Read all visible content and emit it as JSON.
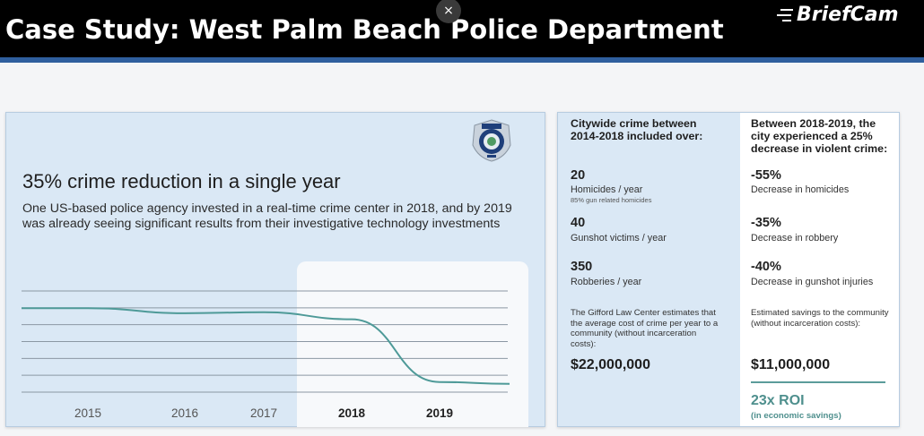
{
  "header": {
    "title": "Case Study: West Palm Beach Police Department",
    "close_glyph": "×",
    "logo_text": "BriefCam"
  },
  "left_panel": {
    "headline": "35% crime reduction in a single year",
    "subhead": "One US-based police agency invested in a real-time crime center in 2018, and by 2019 was already seeing significant results from their investigative technology investments",
    "badge_icon": "police-badge-icon"
  },
  "chart_data": {
    "type": "line",
    "categories": [
      "2015",
      "2016",
      "2017",
      "2018",
      "2019"
    ],
    "highlighted": [
      "2018",
      "2019"
    ],
    "series": [
      {
        "values": [
          0.83,
          0.78,
          0.79,
          0.72,
          0.1
        ],
        "color": "#4e9a98"
      }
    ],
    "ylim": [
      0,
      1
    ],
    "grid": true,
    "title": "",
    "xlabel": "",
    "ylabel": ""
  },
  "right_panel": {
    "col1": {
      "heading": "Citywide crime between 2014-2018 included over:",
      "stats": [
        {
          "value": "20",
          "label": "Homicides / year",
          "note": "85% gun related homicides"
        },
        {
          "value": "40",
          "label": "Gunshot victims / year",
          "note": ""
        },
        {
          "value": "350",
          "label": "Robberies / year",
          "note": ""
        }
      ],
      "paragraph": "The Gifford Law Center estimates that the average cost of crime per year to a community (without incarceration costs):",
      "money": "$22,000,000"
    },
    "col2": {
      "heading": "Between 2018-2019, the city experienced a 25% decrease in violent crime:",
      "stats": [
        {
          "value": "-55%",
          "label": "Decrease in homicides"
        },
        {
          "value": "-35%",
          "label": "Decrease in robbery"
        },
        {
          "value": "-40%",
          "label": "Decrease in gunshot injuries"
        }
      ],
      "paragraph": "Estimated savings to the community (without incarceration costs):",
      "money": "$11,000,000",
      "roi": "23x ROI",
      "roi_sub": "(in economic savings)"
    }
  },
  "colors": {
    "top_bar": "#000000",
    "stripe": "#2f5f9e",
    "panel": "#dae8f5",
    "teal": "#4e8f8d"
  }
}
